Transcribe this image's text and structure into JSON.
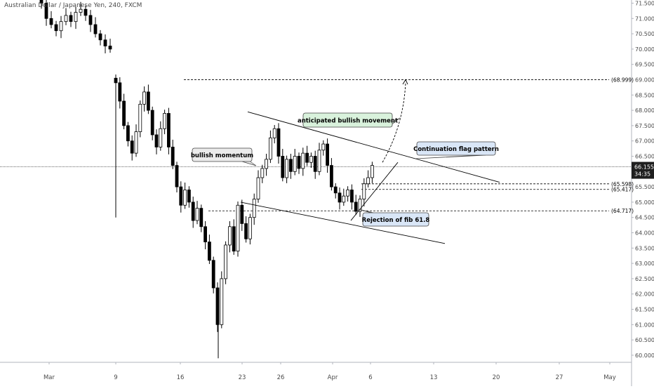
{
  "header": {
    "symbol": "Australian Dollar / Japanese Yen, 240, FXCM"
  },
  "colors": {
    "up_candle": "#000000",
    "down_candle": "#000000",
    "grid": "#e0e3eb",
    "axis_text": "#4a4a4a",
    "trendline": "#000000",
    "price_line": "#555555",
    "last_price_bg": "#1f1f1f",
    "last_price_text": "#ffffff",
    "label_green_bg": "#d9f2dc",
    "label_blue_bg": "#d9e6f7",
    "label_gray_bg": "#ebebeb"
  },
  "chart_data": {
    "type": "candlestick",
    "ylim": [
      59.5,
      71.6
    ],
    "y_ticks": [
      "71.500",
      "71.000",
      "70.500",
      "70.000",
      "69.500",
      "69.000",
      "68.500",
      "68.000",
      "67.500",
      "67.000",
      "66.500",
      "66.000",
      "65.500",
      "65.000",
      "64.500",
      "64.000",
      "63.500",
      "63.000",
      "62.500",
      "62.000",
      "61.500",
      "61.000",
      "60.500",
      "60.000"
    ],
    "x_ticks": [
      "Mar",
      "9",
      "16",
      "23",
      "26",
      "Apr",
      "6",
      "13",
      "20",
      "27",
      "May"
    ],
    "series": [
      {
        "date": "Mar 2",
        "segment": 1,
        "values": [
          71.5,
          71.0,
          70.8,
          70.6,
          70.9,
          71.1,
          70.9,
          71.2,
          71.3,
          71.1,
          70.8,
          70.5,
          70.3,
          70.1,
          70.0
        ]
      },
      {
        "date": "Mar 9",
        "segment": 2,
        "values": [
          68.9,
          68.3,
          67.5,
          67.0,
          66.6,
          67.3,
          68.2,
          68.6,
          68.0,
          67.2,
          66.8,
          67.4,
          67.9,
          66.8,
          66.2,
          65.5,
          64.9,
          65.4,
          65.0,
          64.4,
          64.8,
          64.2,
          63.7,
          63.1,
          62.2,
          61.0,
          62.5,
          63.6,
          64.2,
          63.4,
          64.9,
          64.3,
          63.8,
          64.5,
          65.1,
          65.8,
          66.1,
          66.4,
          67.1,
          67.4,
          66.5,
          65.8,
          66.4,
          66.0,
          66.5,
          66.1,
          66.6,
          66.3,
          66.5,
          66.0,
          66.7,
          66.9,
          66.2,
          65.5,
          65.3,
          65.0,
          65.2,
          65.4,
          65.0,
          64.7,
          65.1,
          65.6,
          65.8,
          66.2
        ]
      }
    ],
    "last_price": "66.155",
    "countdown": "34:35",
    "levels": [
      {
        "label": "(68.999)",
        "value": 68.999
      },
      {
        "label": "(65.598)",
        "value": 65.598
      },
      {
        "label": "(65.417)",
        "value": 65.417
      },
      {
        "label": "(64.717)",
        "value": 64.717
      }
    ],
    "annotations": {
      "momentum": "bullish momentum",
      "anticipated": "anticipated bullish movement",
      "flag": "Continuation flag pattern",
      "rejection": "Rejection of fib 61.8"
    }
  }
}
